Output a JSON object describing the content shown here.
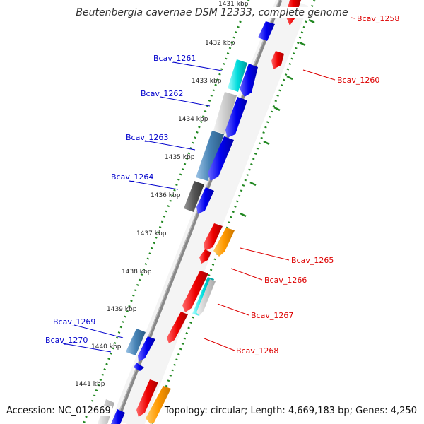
{
  "title": "Beutenbergia cavernae DSM 12333, complete genome",
  "footer": {
    "accession": "Accession: NC_012669",
    "summary": "Topology: circular; Length: 4,669,183 bp; Genes: 4,250"
  },
  "ticks": [
    "1431 kbp",
    "1432 kbp",
    "1433 kbp",
    "1434 kbp",
    "1435 kbp",
    "1436 kbp",
    "1437 kbp",
    "1438 kbp",
    "1439 kbp",
    "1440 kbp",
    "1441 kbp"
  ],
  "genes_left": [
    "Bcav_1261",
    "Bcav_1262",
    "Bcav_1263",
    "Bcav_1264",
    "Bcav_1269",
    "Bcav_1270"
  ],
  "genes_right": [
    "Bcav_1258",
    "Bcav_1260",
    "Bcav_1265",
    "Bcav_1266",
    "Bcav_1267",
    "Bcav_1268"
  ],
  "colors": {
    "reverse_label": "#0000cc",
    "forward_label": "#dd0000",
    "backbone": "#888888",
    "tick_dots": "#228822",
    "blue": "#0000ee",
    "red": "#ee0000",
    "orange": "#ff9900",
    "cyan": "#00cccc",
    "steelblue": "#4682b4",
    "gray": "#555555",
    "lightgray": "#cccccc"
  }
}
